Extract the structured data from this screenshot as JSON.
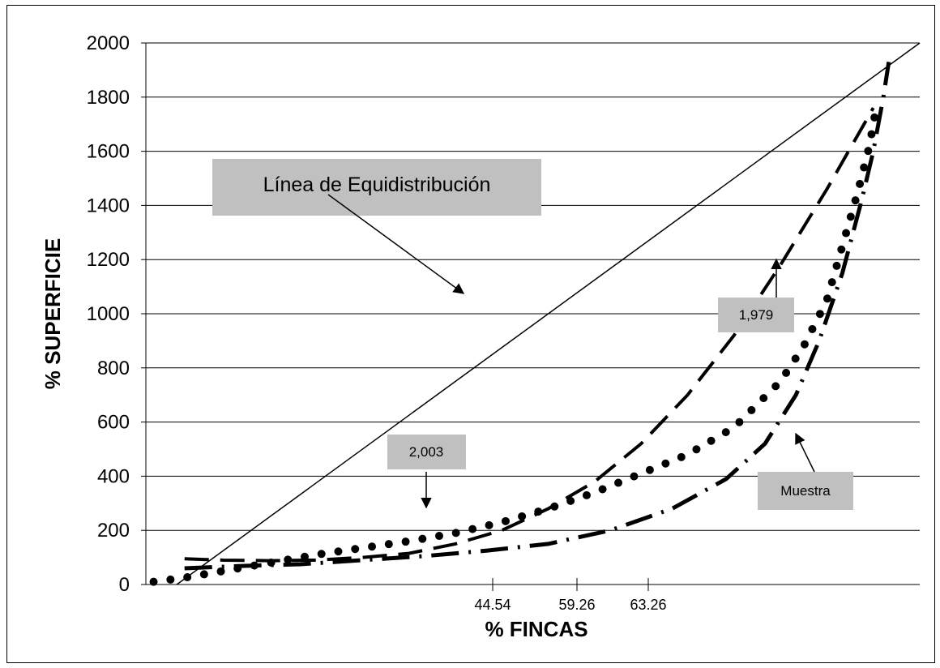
{
  "chart_data": {
    "type": "line",
    "title": "",
    "xlabel": "% FINCAS",
    "ylabel": "% SUPERFICIE",
    "ylim": [
      0,
      2000
    ],
    "y_ticks": [
      "0",
      "200",
      "400",
      "600",
      "800",
      "1000",
      "1200",
      "1400",
      "1600",
      "1800",
      "2000"
    ],
    "x_tick_labels": [
      "44.54",
      "59.26",
      "63.26"
    ],
    "grid": true,
    "legend": "none",
    "series": [
      {
        "style": "solid",
        "x": [
          4,
          100
        ],
        "y": [
          0,
          2000
        ]
      },
      {
        "style": "dashed",
        "x": [
          5,
          10,
          16,
          22,
          28,
          34,
          40,
          46,
          52,
          58,
          64,
          70,
          76,
          82,
          88,
          94
        ],
        "y": [
          95,
          90,
          88,
          90,
          100,
          115,
          150,
          200,
          280,
          380,
          520,
          700,
          920,
          1180,
          1460,
          1760
        ]
      },
      {
        "style": "dotted",
        "x": [
          1,
          5,
          10,
          16,
          22,
          28,
          34,
          40,
          46,
          52,
          58,
          64,
          70,
          76,
          82,
          85,
          88,
          90,
          92,
          93.5,
          94,
          94.3
        ],
        "y": [
          10,
          25,
          50,
          80,
          110,
          135,
          160,
          190,
          230,
          280,
          340,
          410,
          480,
          580,
          750,
          880,
          1050,
          1250,
          1450,
          1620,
          1700,
          1750
        ]
      },
      {
        "style": "dash-dot",
        "x": [
          5,
          12,
          20,
          28,
          36,
          44,
          52,
          60,
          68,
          75,
          80,
          84,
          87,
          90,
          92.5,
          94,
          95.3,
          96
        ],
        "y": [
          60,
          68,
          75,
          90,
          105,
          125,
          150,
          200,
          280,
          390,
          520,
          700,
          900,
          1150,
          1420,
          1600,
          1800,
          1930
        ]
      }
    ],
    "annotations": [
      {
        "text": "Línea de Equidistribución"
      },
      {
        "text": "1,979"
      },
      {
        "text": "2,003"
      },
      {
        "text": "Muestra"
      }
    ],
    "colors": {
      "line": "#000000",
      "grid": "#000000",
      "label_box": "#c0c0c0"
    }
  }
}
